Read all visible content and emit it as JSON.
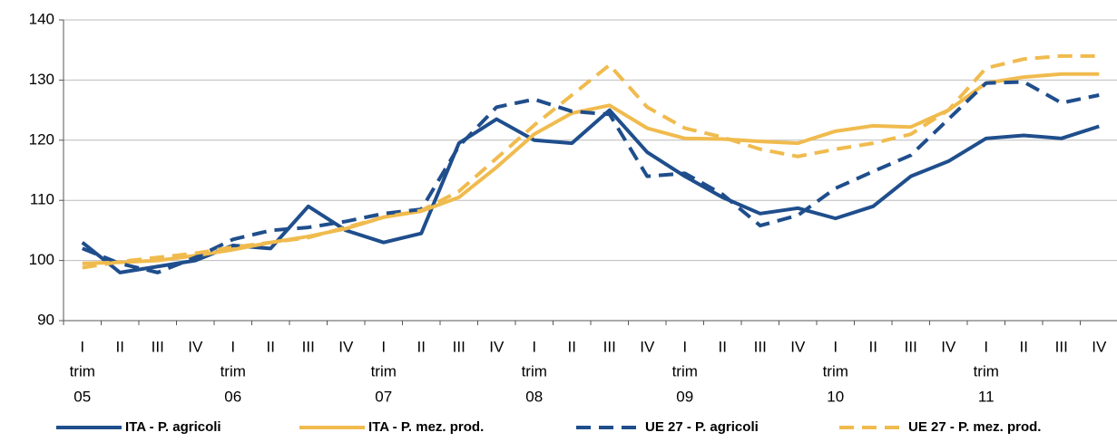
{
  "chart_data": {
    "type": "line",
    "categories": [
      "I",
      "II",
      "III",
      "IV",
      "I",
      "II",
      "III",
      "IV",
      "I",
      "II",
      "III",
      "IV",
      "I",
      "II",
      "III",
      "IV",
      "I",
      "II",
      "III",
      "IV",
      "I",
      "II",
      "III",
      "IV",
      "I",
      "II",
      "III",
      "IV"
    ],
    "groups": [
      [
        "trim",
        "05"
      ],
      [
        "trim",
        "06"
      ],
      [
        "trim",
        "07"
      ],
      [
        "trim",
        "08"
      ],
      [
        "trim",
        "09"
      ],
      [
        "trim",
        "10"
      ],
      [
        "trim",
        "11"
      ]
    ],
    "ylim": [
      90,
      140
    ],
    "yticks": [
      90,
      100,
      110,
      120,
      130,
      140
    ],
    "grid": true,
    "legend": "bottom",
    "series": [
      {
        "name": "ITA - P. agricoli",
        "color": "#1f4e8c",
        "dashed": false,
        "values": [
          103,
          98,
          99,
          100,
          102.5,
          102,
          109,
          105,
          103,
          104.5,
          119.5,
          123.5,
          120,
          119.5,
          125,
          118,
          114,
          110.5,
          107.8,
          108.7,
          107,
          109,
          114,
          116.5,
          120.3,
          120.8,
          120.3,
          122.3
        ]
      },
      {
        "name": "ITA - P. mez. prod.",
        "color": "#f0bb4e",
        "dashed": false,
        "values": [
          99.5,
          99.7,
          100,
          100.8,
          101.8,
          103,
          104,
          105.3,
          107.2,
          108.2,
          110.5,
          115.5,
          121,
          124.5,
          125.8,
          122,
          120.3,
          120.2,
          119.8,
          119.5,
          121.5,
          122.4,
          122.2,
          125,
          129.5,
          130.5,
          131,
          131
        ]
      },
      {
        "name": "UE 27 - P. agricoli",
        "color": "#1f4e8c",
        "dashed": true,
        "values": [
          102,
          99.5,
          98,
          100.5,
          103.5,
          105,
          105.5,
          106.5,
          107.8,
          108.5,
          119,
          125.5,
          126.8,
          124.8,
          124.3,
          114,
          114.5,
          111,
          105.8,
          107.5,
          112,
          114.8,
          117.5,
          123.5,
          129.5,
          129.7,
          126.2,
          127.5
        ]
      },
      {
        "name": "UE 27 - P. mez. prod.",
        "color": "#f0bb4e",
        "dashed": true,
        "values": [
          98.8,
          99.8,
          100.5,
          101.2,
          102.2,
          103,
          103.8,
          105.5,
          107.2,
          108.3,
          111.5,
          117,
          122.5,
          127.5,
          132.5,
          125.5,
          122,
          120.5,
          118.5,
          117.3,
          118.5,
          119.5,
          121,
          125,
          132,
          133.5,
          134,
          134
        ]
      }
    ]
  }
}
